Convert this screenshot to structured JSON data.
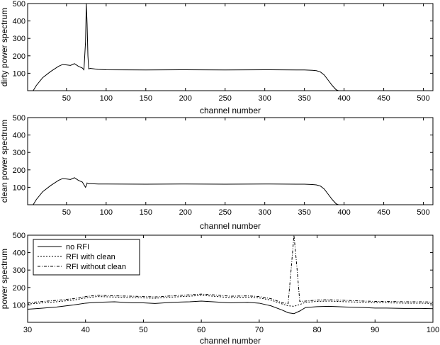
{
  "chart_data": [
    {
      "type": "line",
      "xlabel": "channel number",
      "ylabel": "dirty power spectrum",
      "xlim": [
        1,
        512
      ],
      "ylim": [
        0,
        500
      ],
      "xticks": [
        50,
        100,
        150,
        200,
        250,
        300,
        350,
        400,
        450,
        500
      ],
      "yticks": [
        100,
        200,
        300,
        400,
        500
      ],
      "grid": false,
      "series": [
        {
          "style": "solid",
          "color": "#000000",
          "x": [
            8,
            12,
            20,
            30,
            40,
            45,
            50,
            55,
            60,
            65,
            70,
            72,
            74,
            75,
            76,
            77,
            78,
            80,
            85,
            90,
            100,
            150,
            200,
            250,
            300,
            340,
            350,
            360,
            365,
            370,
            375,
            380,
            385,
            390,
            393
          ],
          "y": [
            0,
            30,
            75,
            110,
            140,
            150,
            148,
            145,
            155,
            140,
            130,
            120,
            280,
            500,
            380,
            200,
            125,
            128,
            125,
            122,
            120,
            119,
            120,
            119,
            120,
            119,
            119,
            117,
            115,
            108,
            90,
            60,
            30,
            5,
            0
          ]
        }
      ]
    },
    {
      "type": "line",
      "xlabel": "channel number",
      "ylabel": "clean power spectrum",
      "xlim": [
        1,
        512
      ],
      "ylim": [
        0,
        500
      ],
      "xticks": [
        50,
        100,
        150,
        200,
        250,
        300,
        350,
        400,
        450,
        500
      ],
      "yticks": [
        100,
        200,
        300,
        400,
        500
      ],
      "grid": false,
      "series": [
        {
          "style": "solid",
          "color": "#000000",
          "x": [
            8,
            12,
            20,
            30,
            40,
            45,
            50,
            55,
            60,
            65,
            70,
            72,
            74,
            75,
            76,
            77,
            78,
            80,
            85,
            90,
            100,
            150,
            200,
            250,
            300,
            340,
            350,
            360,
            365,
            370,
            375,
            380,
            385,
            390,
            393
          ],
          "y": [
            0,
            30,
            75,
            110,
            140,
            150,
            148,
            145,
            155,
            140,
            130,
            115,
            100,
            110,
            125,
            122,
            120,
            121,
            120,
            119,
            119,
            118,
            119,
            118,
            119,
            118,
            118,
            116,
            114,
            108,
            90,
            60,
            30,
            5,
            0
          ]
        }
      ]
    },
    {
      "type": "line",
      "xlabel": "channel number",
      "ylabel": "power spectrum",
      "xlim": [
        30,
        100
      ],
      "ylim": [
        0,
        500
      ],
      "xticks": [
        30,
        40,
        50,
        60,
        70,
        80,
        90,
        100
      ],
      "yticks": [
        100,
        200,
        300,
        400,
        500
      ],
      "grid": false,
      "legend": {
        "position": "top-left"
      },
      "series": [
        {
          "name": "no RFI",
          "style": "solid",
          "color": "#000000",
          "x": [
            30,
            32,
            35,
            38,
            40,
            42,
            45,
            48,
            50,
            52,
            55,
            58,
            60,
            62,
            65,
            68,
            70,
            72,
            74,
            75,
            76,
            77,
            78,
            80,
            82,
            85,
            88,
            90,
            92,
            95,
            98,
            100
          ],
          "y": [
            75,
            80,
            88,
            100,
            110,
            115,
            118,
            112,
            112,
            108,
            115,
            118,
            122,
            118,
            112,
            115,
            110,
            95,
            70,
            55,
            50,
            65,
            85,
            90,
            92,
            88,
            85,
            82,
            82,
            80,
            80,
            78
          ]
        },
        {
          "name": "RFI with clean",
          "style": "dotted",
          "color": "#000000",
          "x": [
            30,
            32,
            35,
            38,
            40,
            42,
            45,
            48,
            50,
            52,
            55,
            58,
            60,
            62,
            65,
            68,
            70,
            72,
            74,
            75,
            76,
            77,
            78,
            80,
            82,
            85,
            88,
            90,
            92,
            95,
            98,
            100
          ],
          "y": [
            105,
            110,
            118,
            128,
            140,
            148,
            145,
            142,
            140,
            138,
            145,
            150,
            155,
            150,
            142,
            145,
            140,
            128,
            105,
            95,
            92,
            102,
            115,
            120,
            122,
            118,
            115,
            112,
            112,
            110,
            110,
            108
          ]
        },
        {
          "name": "RFI without clean",
          "style": "dashdot",
          "color": "#000000",
          "x": [
            30,
            32,
            35,
            38,
            40,
            42,
            45,
            48,
            50,
            52,
            55,
            58,
            60,
            62,
            65,
            68,
            70,
            72,
            74,
            75,
            75.5,
            76,
            76.5,
            77,
            78,
            80,
            82,
            85,
            88,
            90,
            92,
            95,
            98,
            100
          ],
          "y": [
            112,
            118,
            126,
            136,
            148,
            155,
            152,
            150,
            148,
            146,
            152,
            158,
            162,
            158,
            150,
            152,
            148,
            136,
            112,
            108,
            300,
            500,
            320,
            120,
            122,
            128,
            130,
            126,
            122,
            120,
            120,
            118,
            118,
            116
          ]
        }
      ]
    }
  ]
}
